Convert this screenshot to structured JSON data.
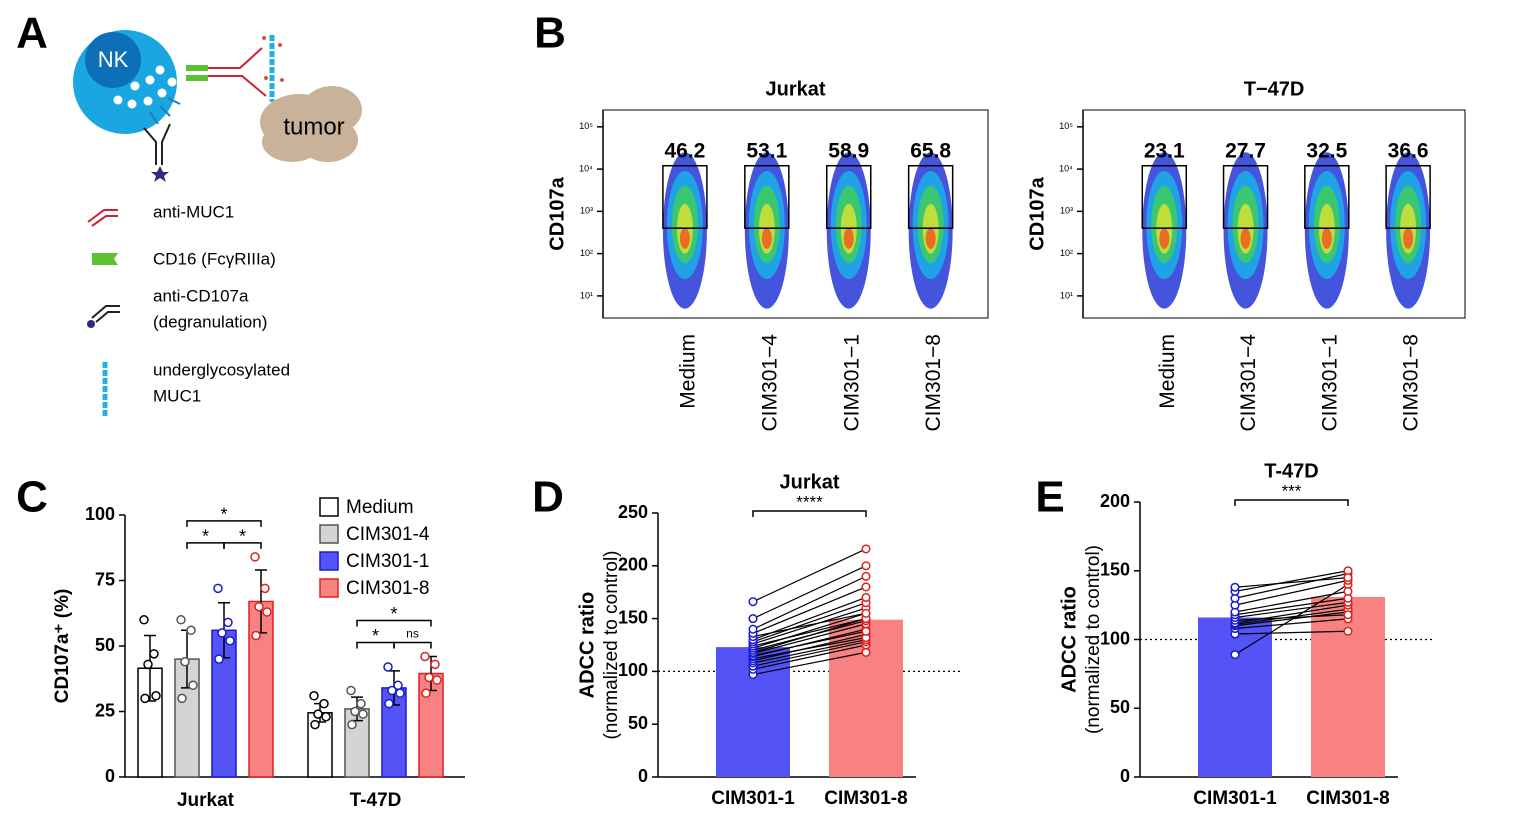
{
  "panel_labels": [
    "A",
    "B",
    "C",
    "D",
    "E"
  ],
  "diagram": {
    "cell_labels": [
      "NK",
      "tumor"
    ],
    "legend": [
      [
        "anti-MUC1"
      ],
      [
        "CD16 (FcγRIIIa)"
      ],
      [
        "anti-CD107a",
        "(degranulation)"
      ],
      [
        "underglycosylated",
        "MUC1"
      ]
    ]
  },
  "chart_data": [
    {
      "type": "flow",
      "title": "Jurkat",
      "ylabel": "CD107a",
      "log_scale": true,
      "categories": [
        "Medium",
        "CIM301−4",
        "CIM301−1",
        "CIM301−8"
      ],
      "values": [
        46.2,
        53.1,
        58.9,
        65.8
      ],
      "ylim": [
        3,
        250000
      ],
      "yticks": [
        {
          "value": 10,
          "label": "10¹"
        },
        {
          "value": 100,
          "label": "10²"
        },
        {
          "value": 1000,
          "label": "10³"
        },
        {
          "value": 10000,
          "label": "10⁴"
        },
        {
          "value": 100000,
          "label": "10⁵"
        }
      ]
    },
    {
      "type": "flow",
      "title": "T−47D",
      "ylabel": "CD107a",
      "log_scale": true,
      "categories": [
        "Medium",
        "CIM301−4",
        "CIM301−1",
        "CIM301−8"
      ],
      "values": [
        23.1,
        27.7,
        32.5,
        36.6
      ],
      "ylim": [
        3,
        250000
      ],
      "yticks": [
        {
          "value": 10,
          "label": "10¹"
        },
        {
          "value": 100,
          "label": "10²"
        },
        {
          "value": 1000,
          "label": "10³"
        },
        {
          "value": 10000,
          "label": "10⁴"
        },
        {
          "value": 100000,
          "label": "10⁵"
        }
      ]
    },
    {
      "type": "grouped_bar",
      "ylabel": "CD107a⁺ (%)",
      "categories": [
        "Jurkat",
        "T-47D"
      ],
      "ylim": [
        0,
        100
      ],
      "yticks": [
        0,
        25,
        50,
        75,
        100
      ],
      "series": [
        {
          "name": "Medium",
          "color": "#ffffff",
          "edge_color": "#000000",
          "values": [
            41.5,
            24.5
          ],
          "errors": [
            12.5,
            3.5
          ],
          "points": [
            [
              60,
              47,
              43,
              31,
              30
            ],
            [
              31,
              28,
              24,
              23,
              20
            ]
          ]
        },
        {
          "name": "CIM301-4",
          "color": "#d4d4d4",
          "edge_color": "#555555",
          "values": [
            45,
            26
          ],
          "errors": [
            11,
            4.5
          ],
          "points": [
            [
              60,
              56,
              44,
              35,
              30
            ],
            [
              33,
              28,
              25,
              24,
              20
            ]
          ]
        },
        {
          "name": "CIM301-1",
          "color": "#5353f6",
          "edge_color": "#1a1ad0",
          "values": [
            56,
            34
          ],
          "errors": [
            10.5,
            6.5
          ],
          "points": [
            [
              72,
              59,
              55,
              52,
              45
            ],
            [
              42,
              35,
              33,
              32,
              28
            ]
          ]
        },
        {
          "name": "CIM301-8",
          "color": "#f88282",
          "edge_color": "#e02020",
          "values": [
            67,
            39.5
          ],
          "errors": [
            12,
            6.5
          ],
          "points": [
            [
              84,
              72,
              65,
              63,
              54
            ],
            [
              46,
              43,
              38,
              37,
              32
            ]
          ]
        }
      ],
      "comparisons": [
        {
          "category": 0,
          "pair": [
            1,
            2
          ],
          "label": "*"
        },
        {
          "category": 0,
          "pair": [
            2,
            3
          ],
          "label": "*"
        },
        {
          "category": 0,
          "pair": [
            1,
            3
          ],
          "label": "*"
        },
        {
          "category": 1,
          "pair": [
            1,
            2
          ],
          "label": "*"
        },
        {
          "category": 1,
          "pair": [
            2,
            3
          ],
          "label": "ns"
        },
        {
          "category": 1,
          "pair": [
            1,
            3
          ],
          "label": "*"
        }
      ]
    },
    {
      "type": "paired_bar",
      "title": "Jurkat",
      "ylabel": "ADCC ratio",
      "ylabel_note": "(normalized to control)",
      "significance": "****",
      "reference_line": 100,
      "ylim": [
        0,
        250
      ],
      "yticks": [
        0,
        50,
        100,
        150,
        200,
        250
      ],
      "series": [
        {
          "name": "CIM301-1",
          "color": "#5353f6",
          "edge_color": "#1a1ad0",
          "value": 123,
          "points": [
            97,
            102,
            105,
            108,
            110,
            112,
            114,
            115,
            117,
            118,
            120,
            122,
            124,
            126,
            128,
            130,
            133,
            136,
            140,
            150,
            166
          ]
        },
        {
          "name": "CIM301-8",
          "color": "#f88282",
          "edge_color": "#e02020",
          "value": 149,
          "points": [
            118,
            125,
            128,
            130,
            135,
            132,
            140,
            138,
            145,
            150,
            148,
            155,
            150,
            160,
            165,
            170,
            155,
            180,
            190,
            200,
            216
          ]
        }
      ]
    },
    {
      "type": "paired_bar",
      "title": "T-47D",
      "ylabel": "ADCC ratio",
      "ylabel_note": "(normalized to control)",
      "significance": "***",
      "reference_line": 100,
      "ylim": [
        0,
        200
      ],
      "yticks": [
        0,
        50,
        100,
        150,
        200
      ],
      "series": [
        {
          "name": "CIM301-1",
          "color": "#5353f6",
          "edge_color": "#1a1ad0",
          "value": 116,
          "points": [
            89,
            104,
            108,
            110,
            111,
            112,
            114,
            116,
            118,
            120,
            125,
            130,
            135,
            138
          ]
        },
        {
          "name": "CIM301-8",
          "color": "#f88282",
          "edge_color": "#e02020",
          "value": 131,
          "points": [
            140,
            106,
            115,
            120,
            122,
            125,
            118,
            127,
            130,
            135,
            143,
            148,
            150,
            145
          ]
        }
      ]
    }
  ]
}
